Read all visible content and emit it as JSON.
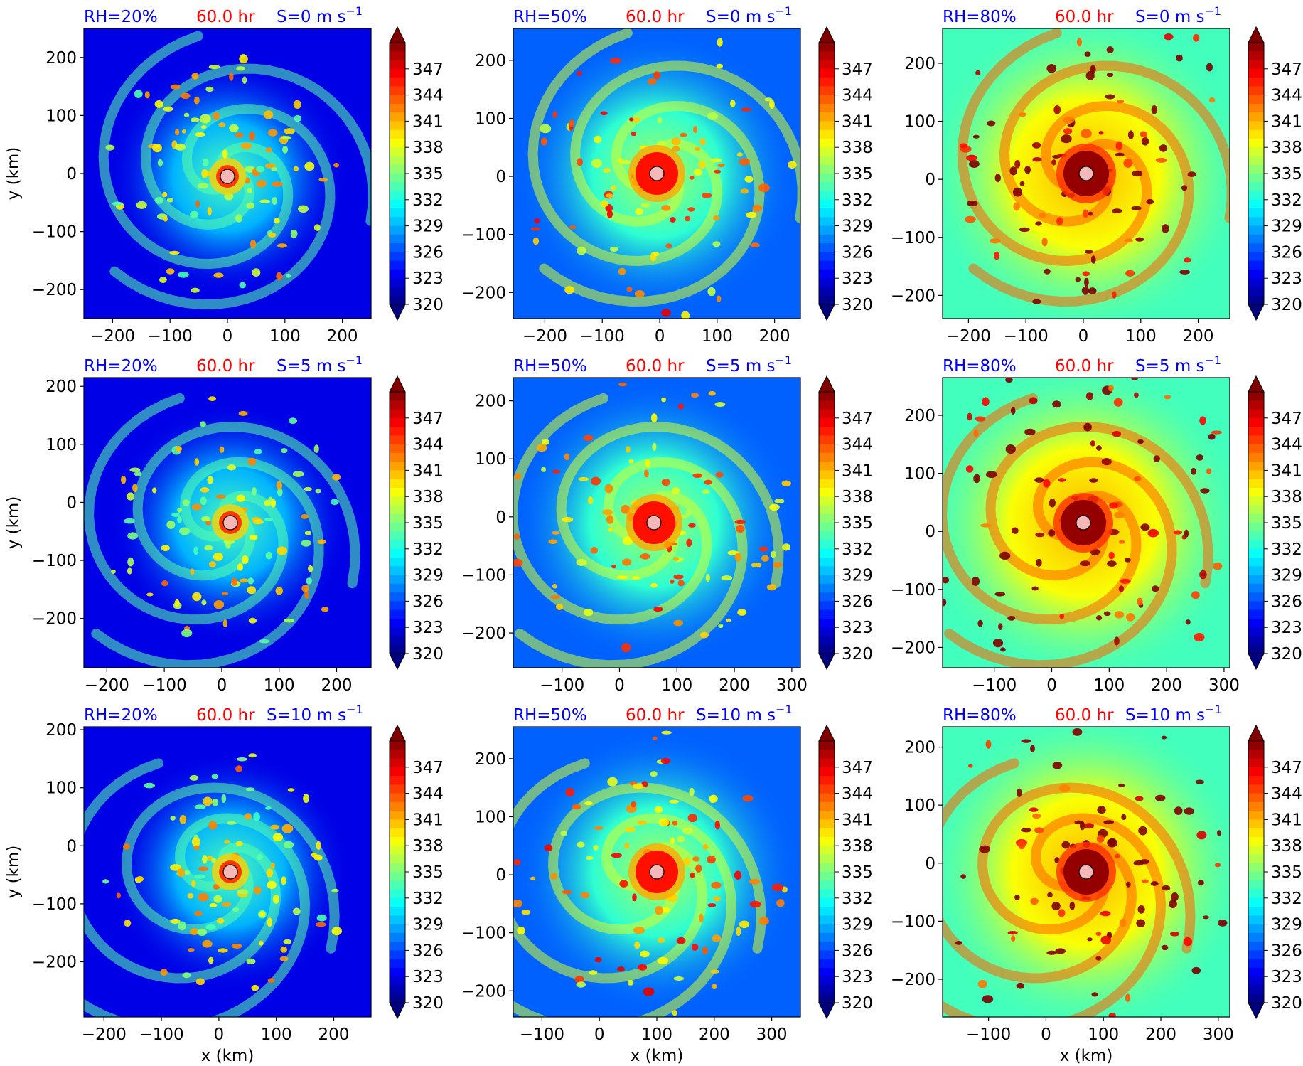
{
  "figure": {
    "colorbar_ticks": [
      "347",
      "344",
      "341",
      "338",
      "335",
      "332",
      "329",
      "326",
      "323",
      "320"
    ],
    "colors": {
      "header_text": "#0000ff",
      "time_text": "#ff0000",
      "center_marker": "#f4b8b8"
    }
  },
  "chart_data": [
    {
      "type": "heatmap",
      "colormap": "jet",
      "clim": [
        320,
        350
      ],
      "colorbar_extend": "both",
      "labels": {
        "rh": "RH=20%",
        "time": "60.0 hr",
        "shear": "S=0 m s",
        "shear_exp": "−1"
      },
      "xlabel": "",
      "ylabel": "y (km)",
      "xticks": [
        "−200",
        "−100",
        "0",
        "100",
        "200"
      ],
      "yticks": [
        "200",
        "100",
        "0",
        "−100",
        "−200"
      ],
      "xlim": [
        -250,
        250
      ],
      "ylim": [
        -250,
        250
      ],
      "center": [
        0,
        -5
      ],
      "rh": 20,
      "shear": 0
    },
    {
      "type": "heatmap",
      "colormap": "jet",
      "clim": [
        320,
        350
      ],
      "colorbar_extend": "both",
      "labels": {
        "rh": "RH=50%",
        "time": "60.0 hr",
        "shear": "S=0 m s",
        "shear_exp": "−1"
      },
      "xlabel": "",
      "ylabel": "",
      "xticks": [
        "−200",
        "−100",
        "0",
        "100",
        "200"
      ],
      "yticks": [
        "200",
        "100",
        "0",
        "−100",
        "−200"
      ],
      "xlim": [
        -255,
        245
      ],
      "ylim": [
        -245,
        255
      ],
      "center": [
        -5,
        5
      ],
      "rh": 50,
      "shear": 0
    },
    {
      "type": "heatmap",
      "colormap": "jet",
      "clim": [
        320,
        350
      ],
      "colorbar_extend": "both",
      "labels": {
        "rh": "RH=80%",
        "time": "60.0 hr",
        "shear": "S=0 m s",
        "shear_exp": "−1"
      },
      "xlabel": "",
      "ylabel": "",
      "xticks": [
        "−200",
        "−100",
        "0",
        "100",
        "200"
      ],
      "yticks": [
        "200",
        "100",
        "0",
        "−100",
        "−200"
      ],
      "xlim": [
        -245,
        255
      ],
      "ylim": [
        -240,
        260
      ],
      "center": [
        5,
        10
      ],
      "rh": 80,
      "shear": 0
    },
    {
      "type": "heatmap",
      "colormap": "jet",
      "clim": [
        320,
        350
      ],
      "colorbar_extend": "both",
      "labels": {
        "rh": "RH=20%",
        "time": "60.0 hr",
        "shear": "S=5 m s",
        "shear_exp": "−1"
      },
      "xlabel": "",
      "ylabel": "y (km)",
      "xticks": [
        "−200",
        "−100",
        "0",
        "100",
        "200"
      ],
      "yticks": [
        "200",
        "100",
        "0",
        "−100",
        "−200"
      ],
      "xlim": [
        -240,
        260
      ],
      "ylim": [
        -285,
        215
      ],
      "center": [
        15,
        -35
      ],
      "rh": 20,
      "shear": 5
    },
    {
      "type": "heatmap",
      "colormap": "jet",
      "clim": [
        320,
        350
      ],
      "colorbar_extend": "both",
      "labels": {
        "rh": "RH=50%",
        "time": "60.0 hr",
        "shear": "S=5 m s",
        "shear_exp": "−1"
      },
      "xlabel": "",
      "ylabel": "",
      "xticks": [
        "−100",
        "0",
        "100",
        "200",
        "300"
      ],
      "yticks": [
        "200",
        "100",
        "0",
        "−100",
        "−200"
      ],
      "xlim": [
        -185,
        315
      ],
      "ylim": [
        -260,
        240
      ],
      "center": [
        60,
        -10
      ],
      "rh": 50,
      "shear": 5
    },
    {
      "type": "heatmap",
      "colormap": "jet",
      "clim": [
        320,
        350
      ],
      "colorbar_extend": "both",
      "labels": {
        "rh": "RH=80%",
        "time": "60.0 hr",
        "shear": "S=5 m s",
        "shear_exp": "−1"
      },
      "xlabel": "",
      "ylabel": "",
      "xticks": [
        "−100",
        "0",
        "100",
        "200",
        "300"
      ],
      "yticks": [
        "200",
        "100",
        "0",
        "−100",
        "−200"
      ],
      "xlim": [
        -190,
        310
      ],
      "ylim": [
        -235,
        265
      ],
      "center": [
        55,
        15
      ],
      "rh": 80,
      "shear": 5
    },
    {
      "type": "heatmap",
      "colormap": "jet",
      "clim": [
        320,
        350
      ],
      "colorbar_extend": "both",
      "labels": {
        "rh": "RH=20%",
        "time": "60.0 hr",
        "shear": "S=10 m s",
        "shear_exp": "−1"
      },
      "xlabel": "x (km)",
      "ylabel": "y (km)",
      "xticks": [
        "−200",
        "−100",
        "0",
        "100",
        "200"
      ],
      "yticks": [
        "200",
        "100",
        "0",
        "−100",
        "−200"
      ],
      "xlim": [
        -235,
        265
      ],
      "ylim": [
        -295,
        205
      ],
      "center": [
        20,
        -45
      ],
      "rh": 20,
      "shear": 10
    },
    {
      "type": "heatmap",
      "colormap": "jet",
      "clim": [
        320,
        350
      ],
      "colorbar_extend": "both",
      "labels": {
        "rh": "RH=50%",
        "time": "60.0 hr",
        "shear": "S=10 m s",
        "shear_exp": "−1"
      },
      "xlabel": "x (km)",
      "ylabel": "",
      "xticks": [
        "−100",
        "0",
        "100",
        "200",
        "300"
      ],
      "yticks": [
        "200",
        "100",
        "0",
        "−100",
        "−200"
      ],
      "xlim": [
        -150,
        350
      ],
      "ylim": [
        -245,
        255
      ],
      "center": [
        100,
        5
      ],
      "rh": 50,
      "shear": 10
    },
    {
      "type": "heatmap",
      "colormap": "jet",
      "clim": [
        320,
        350
      ],
      "colorbar_extend": "both",
      "labels": {
        "rh": "RH=80%",
        "time": "60.0 hr",
        "shear": "S=10 m s",
        "shear_exp": "−1"
      },
      "xlabel": "x (km)",
      "ylabel": "",
      "xticks": [
        "−100",
        "0",
        "100",
        "200",
        "300"
      ],
      "yticks": [
        "200",
        "100",
        "0",
        "−100",
        "−200"
      ],
      "xlim": [
        -180,
        320
      ],
      "ylim": [
        -265,
        235
      ],
      "center": [
        70,
        -15
      ],
      "rh": 80,
      "shear": 10
    }
  ]
}
